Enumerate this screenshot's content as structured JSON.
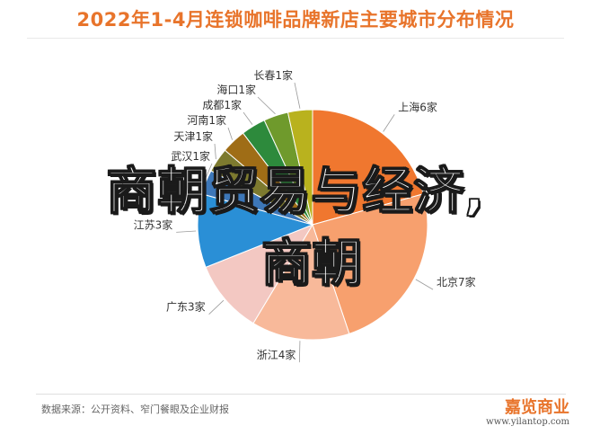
{
  "chart_data": {
    "type": "pie",
    "title": "2022年1-4月连锁咖啡品牌新店主要城市分布情况",
    "slices": [
      {
        "label": "上海6家",
        "value": 6,
        "color": "#f0772f"
      },
      {
        "label": "北京7家",
        "value": 7,
        "color": "#f7a06e"
      },
      {
        "label": "浙江4家",
        "value": 4,
        "color": "#f8b99a"
      },
      {
        "label": "广东3家",
        "value": 3,
        "color": "#f3c8c2"
      },
      {
        "label": "江苏3家",
        "value": 3,
        "color": "#2a8fd6"
      },
      {
        "label": "武汉1家",
        "value": 1,
        "color": "#3d77b8"
      },
      {
        "label": "天津1家",
        "value": 1,
        "color": "#7d7a2f"
      },
      {
        "label": "河南1家",
        "value": 1,
        "color": "#9f6d16"
      },
      {
        "label": "成都1家",
        "value": 1,
        "color": "#2d8a3c"
      },
      {
        "label": "海口1家",
        "value": 1,
        "color": "#6f9a2c"
      },
      {
        "label": "长春1家",
        "value": 1,
        "color": "#b9b21e"
      }
    ]
  },
  "overlay": {
    "line1": "商朝贸易与经济,",
    "line2": "商朝"
  },
  "footer": {
    "source": "数据来源：公开资料、窄门餐眼及企业财报",
    "brand_name": "嘉览商业",
    "brand_url": "www.yilantop.com"
  }
}
